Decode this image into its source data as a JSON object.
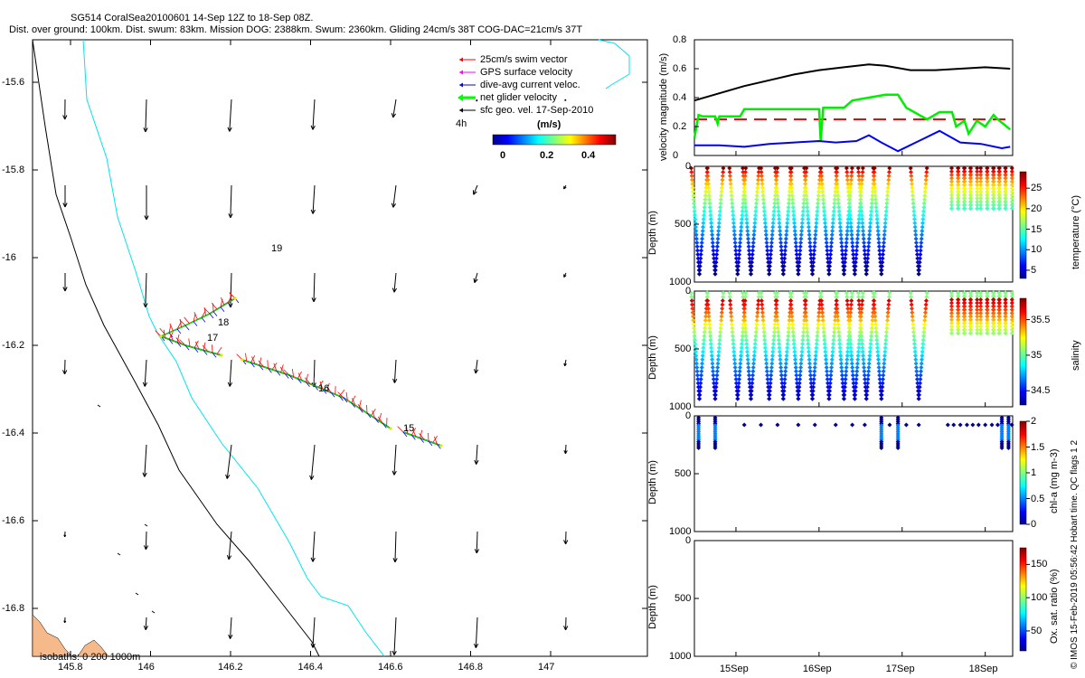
{
  "title": {
    "line1": "SG514 CoralSea20100601 14-Sep 12Z to 18-Sep 08Z.",
    "line2": "Dist. over ground: 100km. Dist. swum: 83km. Mission DOG: 2388km. Swum: 2360km. Gliding 24cm/s 38T COG-DAC=21cm/s 37T"
  },
  "credit": "© IMOS 15-Feb-2019 05:56:42 Hobart time. QC flags 1  2",
  "colors": {
    "coast": "#00e5ee",
    "isobath": "#000000",
    "land": "#f5b98a",
    "swim": "#ff0000",
    "gps": "#ff00ff",
    "dac": "#0000ff",
    "net": "#00ff00",
    "sfc": "#000000",
    "dog_line": "#000000",
    "ref_line": "#ff0000"
  },
  "map": {
    "x_ticks": [
      "145.8",
      "146",
      "146.2",
      "146.4",
      "146.6",
      "146.8",
      "147"
    ],
    "y_ticks": [
      "-15.6",
      "-15.8",
      "-16",
      "-16.2",
      "-16.4",
      "-16.6",
      "-16.8"
    ],
    "legend": {
      "swim": "25cm/s swim vector",
      "gps": "GPS surface velocity",
      "dac": "dive-avg current veloc.",
      "net": "net glider velocity",
      "sfc": "sfc geo. vel. 17-Sep-2010",
      "interval": "4h",
      "cbar_unit": "(m/s)",
      "cbar_ticks": [
        "0",
        "0.2",
        "0.4"
      ]
    },
    "track_labels": [
      "19",
      "18",
      "17",
      "16",
      "15"
    ],
    "isobath_label": "isobaths: 0   200  1000m"
  },
  "chart_data": [
    {
      "type": "line",
      "title": "velocity magnitude",
      "ylabel": "velocity magnitude (m/s)",
      "ylim": [
        0,
        0.8
      ],
      "y_ticks": [
        "0",
        "0.2",
        "0.4",
        "0.6",
        "0.8"
      ],
      "x_range_days": [
        14.5,
        18.33
      ],
      "series": [
        {
          "name": "sfc geo speed",
          "color": "black",
          "x": [
            14.5,
            14.8,
            15.1,
            15.4,
            15.7,
            16.0,
            16.3,
            16.6,
            16.8,
            17.1,
            17.4,
            17.7,
            18.0,
            18.3
          ],
          "values": [
            0.38,
            0.43,
            0.48,
            0.52,
            0.56,
            0.59,
            0.61,
            0.63,
            0.62,
            0.59,
            0.59,
            0.6,
            0.61,
            0.6
          ]
        },
        {
          "name": "swim ref 25cm/s",
          "color": "red",
          "dashed": true,
          "x": [
            14.5,
            18.33
          ],
          "values": [
            0.25,
            0.25
          ]
        },
        {
          "name": "net glider velocity",
          "color": "#00ee00",
          "x": [
            14.5,
            14.55,
            14.6,
            14.75,
            14.78,
            14.8,
            15.05,
            15.1,
            15.4,
            15.6,
            16.0,
            16.02,
            16.05,
            16.3,
            16.4,
            16.8,
            16.95,
            17.05,
            17.3,
            17.45,
            17.6,
            17.65,
            17.75,
            17.8,
            17.9,
            18.0,
            18.1,
            18.15,
            18.3
          ],
          "values": [
            0.12,
            0.28,
            0.27,
            0.27,
            0.22,
            0.27,
            0.27,
            0.32,
            0.32,
            0.32,
            0.32,
            0.1,
            0.33,
            0.33,
            0.38,
            0.42,
            0.42,
            0.33,
            0.25,
            0.3,
            0.3,
            0.2,
            0.24,
            0.15,
            0.24,
            0.2,
            0.28,
            0.25,
            0.18
          ]
        },
        {
          "name": "dive-avg current",
          "color": "blue",
          "x": [
            14.5,
            14.8,
            15.1,
            15.4,
            15.7,
            16.0,
            16.2,
            16.45,
            16.6,
            16.75,
            16.95,
            17.2,
            17.45,
            17.7,
            17.95,
            18.2,
            18.3
          ],
          "values": [
            0.07,
            0.07,
            0.06,
            0.08,
            0.09,
            0.1,
            0.09,
            0.1,
            0.14,
            0.09,
            0.03,
            0.1,
            0.17,
            0.09,
            0.08,
            0.05,
            0.06
          ]
        }
      ]
    },
    {
      "type": "scatter",
      "title": "temperature section",
      "ylabel": "Depth (m)",
      "ylim": [
        0,
        1000
      ],
      "y_ticks": [
        "0",
        "500",
        "1000"
      ],
      "cbar_label": "temperature (°C)",
      "cbar_ticks": [
        "5",
        "10",
        "15",
        "20",
        "25"
      ],
      "cbar_range": [
        3,
        29
      ],
      "dive_times": [
        14.56,
        14.75,
        15.02,
        15.18,
        15.4,
        15.57,
        15.75,
        15.92,
        16.12,
        16.3,
        16.43,
        16.57,
        16.75,
        17.2
      ],
      "max_depth": 950,
      "shallow_times": [
        17.65,
        17.73,
        17.8,
        17.88,
        18.0,
        18.08,
        18.15,
        18.22,
        18.3
      ],
      "shallow_depth": 370
    },
    {
      "type": "scatter",
      "title": "salinity section",
      "ylabel": "Depth (m)",
      "ylim": [
        0,
        1000
      ],
      "y_ticks": [
        "0",
        "500",
        "1000"
      ],
      "cbar_label": "salinity",
      "cbar_ticks": [
        "34.5",
        "35",
        "35.5"
      ],
      "cbar_range": [
        34.3,
        35.8
      ]
    },
    {
      "type": "scatter",
      "title": "chl-a section",
      "ylabel": "Depth (m)",
      "ylim": [
        0,
        1000
      ],
      "y_ticks": [
        "0",
        "500",
        "1000"
      ],
      "cbar_label": "chl-a (mg m-3)",
      "cbar_ticks": [
        "0",
        "0.5",
        "1",
        "1.5",
        "2"
      ],
      "cbar_range": [
        0,
        2
      ],
      "profile_times": [
        14.55,
        14.75,
        16.75,
        16.95,
        18.2,
        18.28
      ],
      "profile_depth": 270,
      "surface_times": [
        15.1,
        15.3,
        15.5,
        15.75,
        15.95,
        16.2,
        16.4,
        16.55,
        16.85,
        17.05,
        17.2,
        17.55,
        17.62,
        17.7,
        17.78,
        17.85,
        17.92,
        18.0,
        18.08,
        18.15,
        18.32
      ]
    },
    {
      "type": "scatter",
      "title": "oxygen section",
      "ylabel": "Depth (m)",
      "ylim": [
        0,
        1000
      ],
      "y_ticks": [
        "0",
        "500",
        "1000"
      ],
      "cbar_label": "Ox. sat. ratio (%)",
      "cbar_ticks": [
        "50",
        "100",
        "150"
      ],
      "cbar_range": [
        20,
        175
      ],
      "x_ticks": [
        "15Sep",
        "16Sep",
        "17Sep",
        "18Sep"
      ],
      "x_tick_days": [
        15,
        16,
        17,
        18
      ]
    }
  ]
}
